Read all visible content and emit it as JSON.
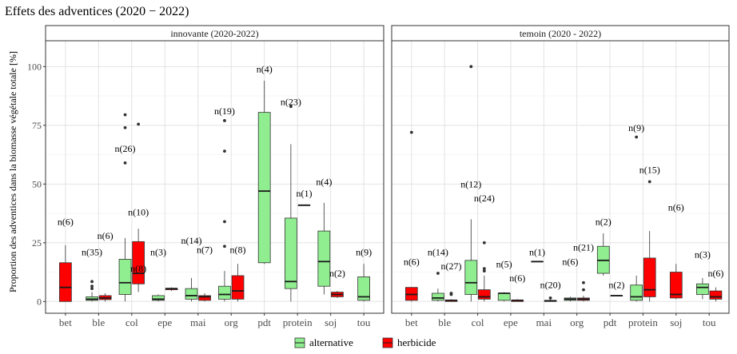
{
  "chart_data": {
    "type": "boxplot",
    "title": "Effets des adventices (2020 − 2022)",
    "ylabel": "Proportion des adventices dans la biomasse végétale totale [%]",
    "xlabel": "",
    "ylim": [
      -5,
      111
    ],
    "yticks": [
      0,
      25,
      50,
      75,
      100
    ],
    "grid": true,
    "legend": {
      "position": "bottom",
      "items": [
        {
          "key": "alternative",
          "label": "alternative",
          "color": "#90ee90"
        },
        {
          "key": "herbicide",
          "label": "herbicide",
          "color": "#ff0000"
        }
      ]
    },
    "panels": [
      {
        "title": "innovante (2020-2022)",
        "categories": [
          "bet",
          "ble",
          "col",
          "epe",
          "mai",
          "org",
          "pdt",
          "protein",
          "soj",
          "tou"
        ],
        "boxes": [
          {
            "category": "bet",
            "group": "herbicide",
            "min": 0,
            "q1": 0,
            "median": 6,
            "q3": 16.5,
            "max": 24,
            "outliers": [],
            "n_label": "n(6)",
            "label_y": 34
          },
          {
            "category": "ble",
            "group": "alternative",
            "min": 0,
            "q1": 0.5,
            "median": 1,
            "q3": 2,
            "max": 4,
            "outliers": [
              5.5,
              6.5,
              8.5
            ],
            "n_label": "n(35)",
            "label_y": 21
          },
          {
            "category": "ble",
            "group": "herbicide",
            "min": 0,
            "q1": 0.8,
            "median": 1.5,
            "q3": 2.5,
            "max": 3.5,
            "outliers": [],
            "n_label": "n(6)",
            "label_y": 28
          },
          {
            "category": "col",
            "group": "alternative",
            "min": 0,
            "q1": 3,
            "median": 8,
            "q3": 18,
            "max": 27,
            "outliers": [
              59,
              74,
              79.5
            ],
            "n_label": "n(26)",
            "label_y": 65
          },
          {
            "category": "col",
            "group": "herbicide",
            "min": 4,
            "q1": 7.5,
            "median": 12,
            "q3": 25.5,
            "max": 31,
            "outliers": [
              75.5
            ],
            "n_label": "n(10)",
            "label_y": 38
          },
          {
            "category": "col",
            "group": "herbicide",
            "min": null,
            "q1": null,
            "median": null,
            "q3": null,
            "max": null,
            "outliers": [],
            "n_label": "n(8)",
            "label_y": 14
          },
          {
            "category": "epe",
            "group": "alternative",
            "min": 0,
            "q1": 0.5,
            "median": 1,
            "q3": 2.5,
            "max": 3,
            "outliers": [],
            "n_label": "n(3)",
            "label_y": 21
          },
          {
            "category": "epe",
            "group": "herbicide",
            "min": 4.5,
            "q1": 5,
            "median": 5.5,
            "q3": 5.5,
            "max": 6,
            "outliers": [],
            "n_label": "",
            "label_y": 0
          },
          {
            "category": "mai",
            "group": "alternative",
            "min": 0,
            "q1": 1,
            "median": 2.5,
            "q3": 5.5,
            "max": 10,
            "outliers": [],
            "n_label": "n(14)",
            "label_y": 26
          },
          {
            "category": "mai",
            "group": "herbicide",
            "min": 0,
            "q1": 0.5,
            "median": 2,
            "q3": 2.5,
            "max": 3.5,
            "outliers": [],
            "n_label": "n(7)",
            "label_y": 22
          },
          {
            "category": "org",
            "group": "alternative",
            "min": 0,
            "q1": 1,
            "median": 3,
            "q3": 6.5,
            "max": 13,
            "outliers": [
              23.5,
              34,
              64,
              77
            ],
            "n_label": "n(19)",
            "label_y": 81
          },
          {
            "category": "org",
            "group": "herbicide",
            "min": 0,
            "q1": 1,
            "median": 4.5,
            "q3": 11,
            "max": 16,
            "outliers": [],
            "n_label": "n(8)",
            "label_y": 22
          },
          {
            "category": "pdt",
            "group": "alternative",
            "min": 16,
            "q1": 16.5,
            "median": 47,
            "q3": 80.5,
            "max": 94,
            "outliers": [],
            "n_label": "n(4)",
            "label_y": 99
          },
          {
            "category": "protein",
            "group": "alternative",
            "min": 0,
            "q1": 5.5,
            "median": 8.5,
            "q3": 35.5,
            "max": 67,
            "outliers": [
              83
            ],
            "n_label": "n(23)",
            "label_y": 85
          },
          {
            "category": "protein",
            "group": "herbicide",
            "min": 41,
            "q1": 41,
            "median": 41,
            "q3": 41,
            "max": 41,
            "outliers": [],
            "n_label": "n(1)",
            "label_y": 46
          },
          {
            "category": "soj",
            "group": "alternative",
            "min": 3,
            "q1": 6.5,
            "median": 17,
            "q3": 30,
            "max": 42,
            "outliers": [],
            "n_label": "n(4)",
            "label_y": 51
          },
          {
            "category": "soj",
            "group": "herbicide",
            "min": 1.5,
            "q1": 2,
            "median": 3,
            "q3": 4,
            "max": 4.5,
            "outliers": [],
            "n_label": "n(2)",
            "label_y": 12
          },
          {
            "category": "tou",
            "group": "alternative",
            "min": 0,
            "q1": 0.5,
            "median": 2,
            "q3": 10.5,
            "max": 16,
            "outliers": [],
            "n_label": "n(9)",
            "label_y": 21
          }
        ]
      },
      {
        "title": "temoin (2020 - 2022)",
        "categories": [
          "bet",
          "ble",
          "col",
          "epe",
          "mai",
          "org",
          "pdt",
          "protein",
          "soj",
          "tou"
        ],
        "boxes": [
          {
            "category": "bet",
            "group": "herbicide",
            "min": 0,
            "q1": 0.5,
            "median": 3,
            "q3": 6,
            "max": 6,
            "outliers": [
              72
            ],
            "n_label": "n(6)",
            "label_y": 17
          },
          {
            "category": "ble",
            "group": "alternative",
            "min": 0,
            "q1": 0.5,
            "median": 1.5,
            "q3": 3.5,
            "max": 5.5,
            "outliers": [
              12
            ],
            "n_label": "n(14)",
            "label_y": 21
          },
          {
            "category": "ble",
            "group": "herbicide",
            "min": 0,
            "q1": 0,
            "median": 0.5,
            "q3": 0.5,
            "max": 1,
            "outliers": [
              3,
              3.5
            ],
            "n_label": "n(27)",
            "label_y": 15
          },
          {
            "category": "col",
            "group": "alternative",
            "min": 0,
            "q1": 3,
            "median": 8,
            "q3": 17.5,
            "max": 35,
            "outliers": [
              100
            ],
            "n_label": "n(12)",
            "label_y": 50
          },
          {
            "category": "col",
            "group": "herbicide",
            "min": 0,
            "q1": 1,
            "median": 2,
            "q3": 5,
            "max": 11,
            "outliers": [
              13,
              14,
              25
            ],
            "n_label": "n(24)",
            "label_y": 44
          },
          {
            "category": "epe",
            "group": "alternative",
            "min": 0,
            "q1": 0.5,
            "median": 3.5,
            "q3": 3.5,
            "max": 4,
            "outliers": [],
            "n_label": "n(5)",
            "label_y": 16
          },
          {
            "category": "epe",
            "group": "herbicide",
            "min": 0,
            "q1": 0,
            "median": 0.5,
            "q3": 0.5,
            "max": 1,
            "outliers": [],
            "n_label": "n(6)",
            "label_y": 10
          },
          {
            "category": "mai",
            "group": "alternative",
            "min": 17,
            "q1": 17,
            "median": 17,
            "q3": 17,
            "max": 17,
            "outliers": [],
            "n_label": "n(1)",
            "label_y": 21
          },
          {
            "category": "mai",
            "group": "herbicide",
            "min": 0,
            "q1": 0,
            "median": 0.3,
            "q3": 0.5,
            "max": 1,
            "outliers": [
              1.5
            ],
            "n_label": "n(20)",
            "label_y": 7
          },
          {
            "category": "org",
            "group": "alternative",
            "min": 0,
            "q1": 0.5,
            "median": 1,
            "q3": 1.5,
            "max": 2,
            "outliers": [],
            "n_label": "n(6)",
            "label_y": 17
          },
          {
            "category": "org",
            "group": "herbicide",
            "min": 0,
            "q1": 0.5,
            "median": 1,
            "q3": 1.5,
            "max": 2.5,
            "outliers": [
              5,
              8
            ],
            "n_label": "n(21)",
            "label_y": 23
          },
          {
            "category": "pdt",
            "group": "alternative",
            "min": 11,
            "q1": 12,
            "median": 17.5,
            "q3": 23.5,
            "max": 29,
            "outliers": [],
            "n_label": "n(2)",
            "label_y": 34
          },
          {
            "category": "pdt",
            "group": "herbicide",
            "min": 2.5,
            "q1": 2.5,
            "median": 2.5,
            "q3": 2.5,
            "max": 2.5,
            "outliers": [],
            "n_label": "n(2)",
            "label_y": 7
          },
          {
            "category": "protein",
            "group": "alternative",
            "min": 0,
            "q1": 0.5,
            "median": 2,
            "q3": 7,
            "max": 11,
            "outliers": [
              70
            ],
            "n_label": "n(9)",
            "label_y": 74
          },
          {
            "category": "protein",
            "group": "herbicide",
            "min": 0,
            "q1": 2,
            "median": 5,
            "q3": 18.5,
            "max": 30,
            "outliers": [
              51
            ],
            "n_label": "n(15)",
            "label_y": 56
          },
          {
            "category": "soj",
            "group": "herbicide",
            "min": 1,
            "q1": 1.5,
            "median": 3,
            "q3": 12.5,
            "max": 16,
            "outliers": [],
            "n_label": "n(6)",
            "label_y": 40
          },
          {
            "category": "tou",
            "group": "alternative",
            "min": 1,
            "q1": 3,
            "median": 6,
            "q3": 7.5,
            "max": 10,
            "outliers": [],
            "n_label": "n(3)",
            "label_y": 20
          },
          {
            "category": "tou",
            "group": "herbicide",
            "min": 0,
            "q1": 1,
            "median": 2,
            "q3": 4.5,
            "max": 6,
            "outliers": [],
            "n_label": "n(6)",
            "label_y": 12
          }
        ]
      }
    ]
  }
}
